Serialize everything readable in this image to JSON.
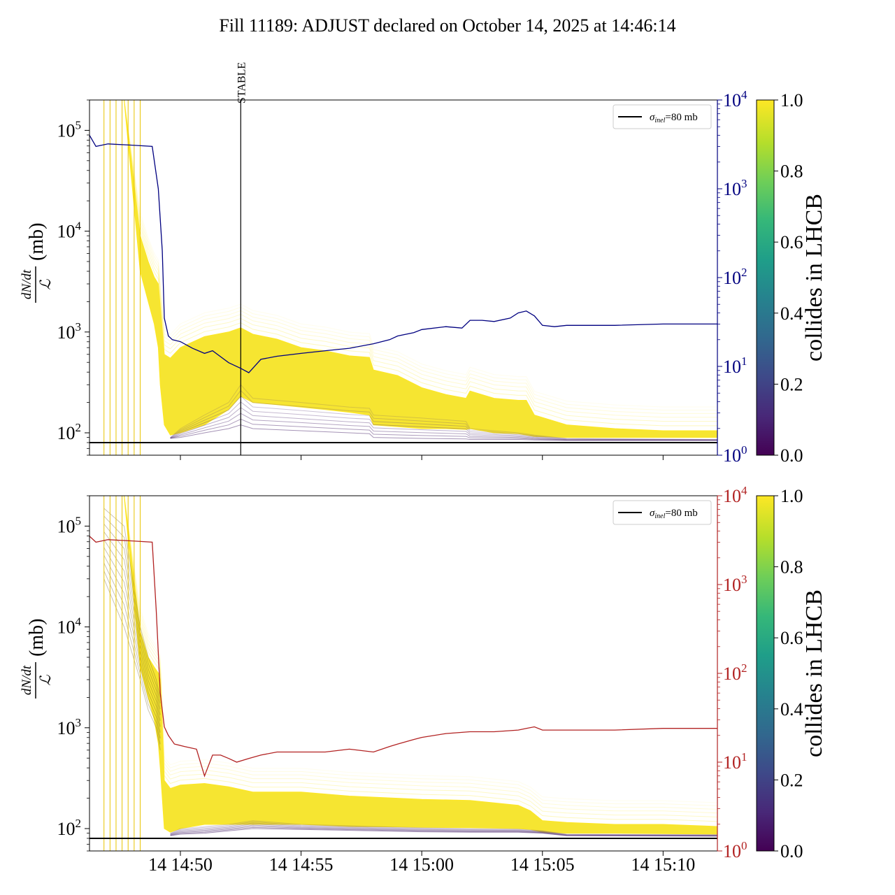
{
  "figure": {
    "title": "Fill 11189: ADJUST declared on October 14, 2025 at 14:46:14"
  },
  "colors": {
    "top_line": "#000080",
    "bottom_line": "#b22222",
    "ref_line": "#000000",
    "viridis": [
      "#440154",
      "#482878",
      "#3e4989",
      "#31688e",
      "#26828e",
      "#1f9e89",
      "#35b779",
      "#6ece58",
      "#b5de2b",
      "#fde725"
    ]
  },
  "chart_data": [
    {
      "type": "line",
      "panel": "top",
      "ylabel_num": "dN/dt",
      "ylabel_den": "ℒ",
      "ylabel_unit": "(mb)",
      "yscale": "log",
      "ylim": [
        60,
        200000
      ],
      "y_ticks": [
        "10^2",
        "10^3",
        "10^4",
        "10^5"
      ],
      "secondary_yscale": "log",
      "secondary_ylim": [
        1,
        10000
      ],
      "secondary_ticks": [
        "10^0",
        "10^1",
        "10^2",
        "10^3",
        "10^4"
      ],
      "secondary_color": "#000080",
      "xlim": [
        "14:46:14",
        "15:12:15"
      ],
      "x_tick_times": [
        "14:50",
        "14:55",
        "15:00",
        "15:05",
        "15:10"
      ],
      "x_tick_labels": [],
      "vline": {
        "time": "14:52:30",
        "label": "STABLE"
      },
      "hline": {
        "value": 80
      },
      "legend": {
        "location": "top-right",
        "label_symbol": "σ",
        "label_sub": "inel",
        "label_rest": "=80 mb"
      },
      "colorbar": {
        "label": "collides in LHCB",
        "range": [
          0,
          1.0
        ],
        "ticks": [
          "0.0",
          "0.2",
          "0.4",
          "0.6",
          "0.8",
          "1.0"
        ]
      },
      "secondary_series": {
        "x": [
          "14:46:14",
          "14:46:30",
          "14:47:00",
          "14:48:00",
          "14:48:50",
          "14:49:05",
          "14:49:15",
          "14:49:20",
          "14:49:30",
          "14:49:40",
          "14:50:00",
          "14:50:30",
          "14:51:00",
          "14:51:20",
          "14:52:00",
          "14:52:30",
          "14:52:50",
          "14:53:20",
          "14:54:00",
          "14:55:00",
          "14:56:00",
          "14:57:00",
          "14:58:00",
          "14:58:40",
          "14:59:00",
          "14:59:40",
          "15:00:00",
          "15:01:00",
          "15:01:40",
          "15:02:00",
          "15:02:30",
          "15:03:00",
          "15:03:40",
          "15:04:00",
          "15:04:20",
          "15:04:40",
          "15:05:00",
          "15:05:30",
          "15:06:00",
          "15:08:00",
          "15:10:00",
          "15:12:15"
        ],
        "y": [
          4000,
          3000,
          3200,
          3100,
          3000,
          1000,
          200,
          35,
          22,
          20,
          19,
          16,
          14,
          15,
          11,
          9.5,
          8.5,
          12,
          13,
          14,
          15,
          16,
          18,
          20,
          22,
          24,
          26,
          28,
          27,
          33,
          33,
          32,
          35,
          40,
          42,
          37,
          29,
          28,
          29,
          29,
          30,
          30
        ]
      },
      "envelope": {
        "x": [
          "14:46:14",
          "14:46:50",
          "14:47:40",
          "14:48:20",
          "14:48:40",
          "14:48:55",
          "14:49:05",
          "14:49:10",
          "14:49:20",
          "14:49:35",
          "14:50:00",
          "14:51:00",
          "14:52:00",
          "14:52:30",
          "14:53:00",
          "14:54:00",
          "14:55:00",
          "14:56:00",
          "14:57:00",
          "14:57:50",
          "14:58:00",
          "14:59:00",
          "15:00:00",
          "15:01:00",
          "15:01:50",
          "15:02:00",
          "15:03:00",
          "15:04:00",
          "15:04:20",
          "15:04:40",
          "15:06:00",
          "15:08:00",
          "15:10:00",
          "15:12:15"
        ],
        "upper": [
          200000,
          200000,
          200000,
          9000,
          5000,
          3500,
          3000,
          1800,
          600,
          550,
          700,
          900,
          1000,
          1100,
          950,
          850,
          700,
          650,
          580,
          560,
          420,
          370,
          280,
          240,
          220,
          260,
          220,
          210,
          210,
          150,
          120,
          110,
          105,
          105
        ],
        "lower": [
          200000,
          200000,
          200000,
          4000,
          2000,
          1200,
          700,
          300,
          120,
          95,
          100,
          120,
          170,
          230,
          200,
          190,
          180,
          170,
          160,
          150,
          120,
          115,
          110,
          110,
          108,
          110,
          100,
          98,
          95,
          92,
          90,
          90,
          90,
          90
        ]
      },
      "purple_band": {
        "x": [
          "14:49:35",
          "14:50:00",
          "14:51:00",
          "14:52:00",
          "14:52:30",
          "14:53:00",
          "14:55:00",
          "14:57:00",
          "14:57:50",
          "14:58:00",
          "15:00:00",
          "15:01:50",
          "15:02:00",
          "15:04:00",
          "15:04:40",
          "15:06:00",
          "15:12:15"
        ],
        "upper": [
          90,
          110,
          150,
          200,
          300,
          220,
          200,
          180,
          175,
          150,
          140,
          130,
          110,
          100,
          95,
          88,
          86
        ],
        "lower": [
          88,
          90,
          100,
          110,
          120,
          110,
          105,
          100,
          98,
          90,
          88,
          87,
          86,
          86,
          85,
          84,
          84
        ]
      }
    },
    {
      "type": "line",
      "panel": "bottom",
      "ylabel_num": "dN/dt",
      "ylabel_den": "ℒ",
      "ylabel_unit": "(mb)",
      "yscale": "log",
      "ylim": [
        60,
        200000
      ],
      "y_ticks": [
        "10^2",
        "10^3",
        "10^4",
        "10^5"
      ],
      "secondary_yscale": "log",
      "secondary_ylim": [
        1,
        10000
      ],
      "secondary_ticks": [
        "10^0",
        "10^1",
        "10^2",
        "10^3",
        "10^4"
      ],
      "secondary_color": "#b22222",
      "xlim": [
        "14:46:14",
        "15:12:15"
      ],
      "x_tick_times": [
        "14:50",
        "14:55",
        "15:00",
        "15:05",
        "15:10"
      ],
      "x_tick_labels": [
        "14 14:50",
        "14 14:55",
        "14 15:00",
        "14 15:05",
        "14 15:10"
      ],
      "hline": {
        "value": 80
      },
      "legend": {
        "location": "top-right",
        "label_symbol": "σ",
        "label_sub": "inel",
        "label_rest": "=80 mb"
      },
      "colorbar": {
        "label": "collides in LHCB",
        "range": [
          0,
          1.0
        ],
        "ticks": [
          "0.0",
          "0.2",
          "0.4",
          "0.6",
          "0.8",
          "1.0"
        ]
      },
      "secondary_series": {
        "x": [
          "14:46:14",
          "14:46:30",
          "14:47:00",
          "14:48:00",
          "14:48:50",
          "14:49:00",
          "14:49:10",
          "14:49:20",
          "14:49:30",
          "14:49:45",
          "14:50:10",
          "14:50:40",
          "14:51:00",
          "14:51:20",
          "14:51:40",
          "14:52:00",
          "14:52:20",
          "14:52:50",
          "14:53:20",
          "14:54:00",
          "14:55:00",
          "14:56:00",
          "14:57:00",
          "14:58:00",
          "14:58:40",
          "14:59:00",
          "14:59:40",
          "15:00:00",
          "15:01:00",
          "15:02:00",
          "15:03:00",
          "15:04:00",
          "15:04:20",
          "15:04:40",
          "15:05:00",
          "15:06:00",
          "15:08:00",
          "15:10:00",
          "15:12:15"
        ],
        "y": [
          3500,
          3000,
          3200,
          3100,
          3000,
          500,
          60,
          25,
          20,
          16,
          15,
          14,
          7,
          12,
          12,
          11,
          10,
          11,
          12,
          13,
          13,
          13,
          14,
          13,
          15,
          16,
          18,
          19,
          21,
          22,
          22,
          23,
          24,
          25,
          23,
          23,
          23,
          24,
          24
        ]
      },
      "envelope": {
        "x": [
          "14:46:14",
          "14:46:50",
          "14:47:40",
          "14:48:20",
          "14:48:40",
          "14:48:55",
          "14:49:05",
          "14:49:10",
          "14:49:20",
          "14:49:35",
          "14:50:00",
          "14:51:00",
          "14:52:00",
          "14:53:00",
          "14:55:00",
          "14:57:00",
          "14:59:00",
          "15:00:00",
          "15:02:00",
          "15:04:00",
          "15:04:30",
          "15:05:00",
          "15:06:00",
          "15:08:00",
          "15:10:00",
          "15:12:15"
        ],
        "upper": [
          200000,
          200000,
          200000,
          9000,
          5000,
          4000,
          3500,
          3000,
          300,
          250,
          270,
          280,
          260,
          230,
          230,
          210,
          200,
          195,
          190,
          170,
          150,
          120,
          115,
          110,
          110,
          105
        ],
        "lower": [
          200000,
          200000,
          200000,
          4000,
          2000,
          1200,
          700,
          400,
          100,
          92,
          100,
          110,
          110,
          110,
          110,
          105,
          104,
          103,
          102,
          100,
          98,
          92,
          90,
          90,
          89,
          88
        ]
      },
      "purple_band": {
        "x": [
          "14:49:35",
          "14:50:00",
          "14:51:00",
          "14:52:00",
          "14:53:00",
          "14:55:00",
          "14:58:00",
          "15:00:00",
          "15:02:00",
          "15:04:00",
          "15:05:00",
          "15:06:00",
          "15:12:15"
        ],
        "upper": [
          90,
          100,
          105,
          110,
          120,
          110,
          105,
          102,
          100,
          99,
          95,
          88,
          87
        ],
        "lower": [
          85,
          88,
          90,
          95,
          100,
          98,
          95,
          93,
          92,
          92,
          90,
          85,
          84
        ]
      },
      "dark_band": {
        "x": [
          "14:46:50",
          "14:47:40",
          "14:48:20",
          "14:48:40",
          "14:49:00",
          "14:49:10"
        ],
        "upper": [
          150000,
          100000,
          10000,
          5000,
          3000,
          2000
        ],
        "lower": [
          30000,
          10000,
          3000,
          1500,
          1000,
          600
        ]
      }
    }
  ]
}
